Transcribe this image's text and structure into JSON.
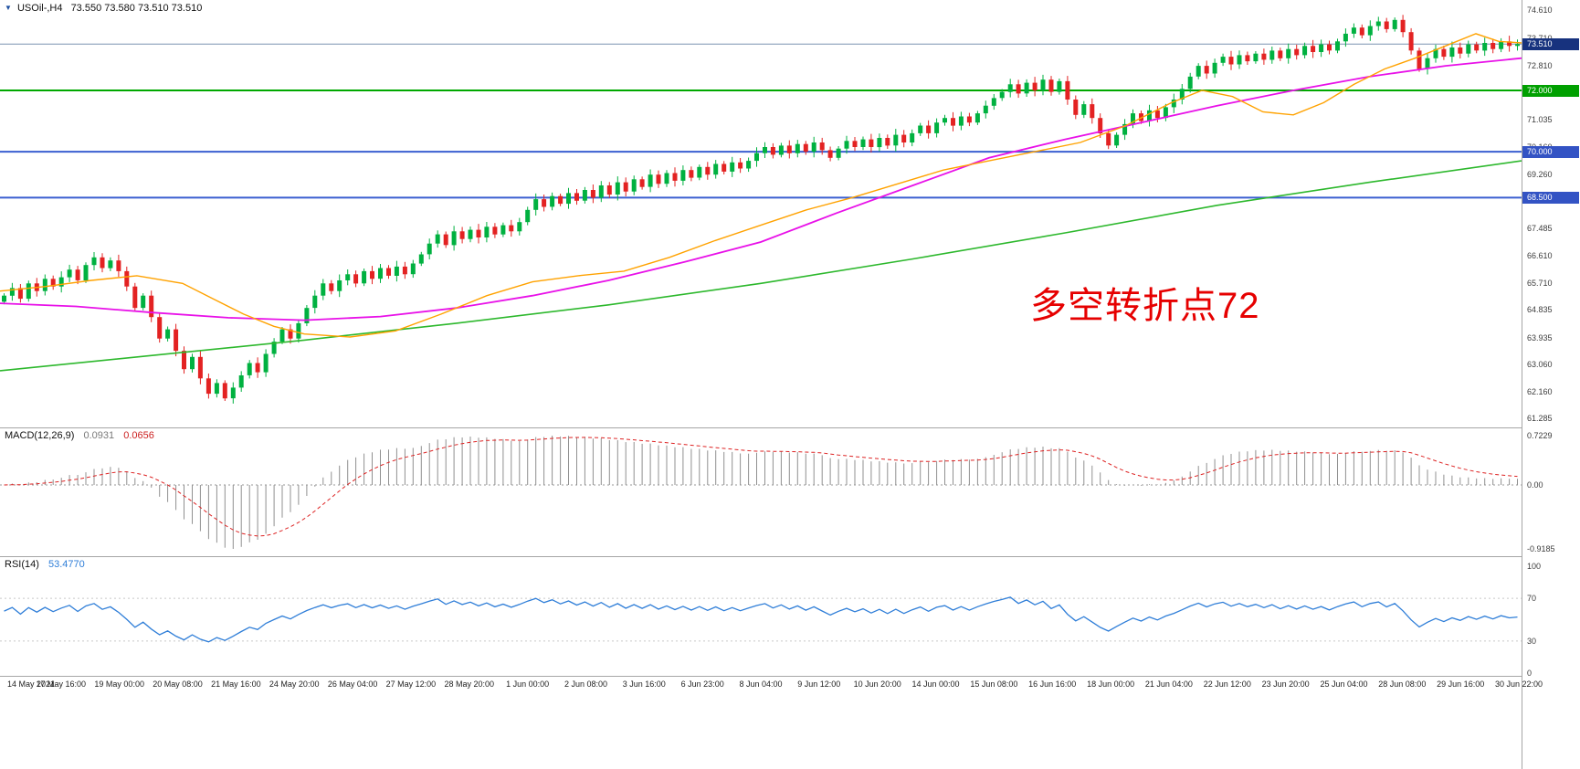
{
  "window": {
    "marker_glyph": "▼",
    "title_symbol": "USOil-,H4",
    "title_quotes": "73.550 73.580 73.510 73.510"
  },
  "annotation": {
    "text": "多空转折点72",
    "color": "#e60000"
  },
  "chart_data": {
    "type": "candlestick",
    "symbol": "USOil",
    "timeframe": "H4",
    "grid": false,
    "y_range": [
      61.0,
      74.95
    ],
    "price_axis_labels": [
      "74.610",
      "73.710",
      "72.810",
      "71.035",
      "70.160",
      "69.260",
      "67.485",
      "66.610",
      "65.710",
      "64.835",
      "63.935",
      "63.060",
      "62.160",
      "61.285"
    ],
    "time_labels": [
      "14 May 2021",
      "17 May 16:00",
      "19 May 00:00",
      "20 May 08:00",
      "21 May 16:00",
      "24 May 20:00",
      "26 May 04:00",
      "27 May 12:00",
      "28 May 20:00",
      "1 Jun 00:00",
      "2 Jun 08:00",
      "3 Jun 16:00",
      "6 Jun 23:00",
      "8 Jun 04:00",
      "9 Jun 12:00",
      "10 Jun 20:00",
      "14 Jun 00:00",
      "15 Jun 08:00",
      "16 Jun 16:00",
      "18 Jun 00:00",
      "21 Jun 04:00",
      "22 Jun 12:00",
      "23 Jun 20:00",
      "25 Jun 04:00",
      "28 Jun 08:00",
      "29 Jun 16:00",
      "30 Jun 22:00"
    ],
    "open_seed": 65.1,
    "closes": [
      65.3,
      65.55,
      65.2,
      65.7,
      65.45,
      65.85,
      65.6,
      65.9,
      66.15,
      65.8,
      66.3,
      66.55,
      66.2,
      66.45,
      66.1,
      65.6,
      64.9,
      65.3,
      64.6,
      63.9,
      64.2,
      63.5,
      62.9,
      63.3,
      62.6,
      62.1,
      62.45,
      61.95,
      62.3,
      62.7,
      63.1,
      62.8,
      63.4,
      63.8,
      64.2,
      63.9,
      64.4,
      64.9,
      65.3,
      65.7,
      65.45,
      65.8,
      66.0,
      65.7,
      66.1,
      65.85,
      66.2,
      65.95,
      66.25,
      66.0,
      66.35,
      66.65,
      67.0,
      67.3,
      66.95,
      67.4,
      67.15,
      67.45,
      67.2,
      67.55,
      67.3,
      67.6,
      67.4,
      67.7,
      68.1,
      68.45,
      68.2,
      68.55,
      68.3,
      68.65,
      68.4,
      68.75,
      68.5,
      68.9,
      68.6,
      69.0,
      68.7,
      69.1,
      68.85,
      69.25,
      68.95,
      69.3,
      69.05,
      69.4,
      69.15,
      69.5,
      69.25,
      69.6,
      69.35,
      69.65,
      69.45,
      69.7,
      69.95,
      70.15,
      69.9,
      70.2,
      69.95,
      70.25,
      70.0,
      70.3,
      70.05,
      69.8,
      70.1,
      70.35,
      70.15,
      70.4,
      70.15,
      70.45,
      70.2,
      70.55,
      70.3,
      70.6,
      70.85,
      70.6,
      70.95,
      71.1,
      70.85,
      71.15,
      70.95,
      71.25,
      71.5,
      71.75,
      71.95,
      72.2,
      71.9,
      72.25,
      72.0,
      72.35,
      71.95,
      72.3,
      71.7,
      71.2,
      71.55,
      71.1,
      70.6,
      70.2,
      70.55,
      70.9,
      71.25,
      71.0,
      71.35,
      71.1,
      71.45,
      71.7,
      72.05,
      72.45,
      72.8,
      72.55,
      72.9,
      73.1,
      72.85,
      73.15,
      72.95,
      73.2,
      73.0,
      73.3,
      73.05,
      73.35,
      73.15,
      73.45,
      73.25,
      73.5,
      73.3,
      73.6,
      73.85,
      74.05,
      73.8,
      74.1,
      74.25,
      74.0,
      74.3,
      73.9,
      73.3,
      72.7,
      73.05,
      73.35,
      73.1,
      73.4,
      73.2,
      73.5,
      73.3,
      73.55,
      73.35,
      73.6,
      73.45,
      73.51
    ],
    "candle_colors": {
      "up": "#00b140",
      "down": "#e32222"
    },
    "hlines": [
      {
        "price": 73.51,
        "label": "73.510",
        "line": "#7b93b1",
        "box": "#17327e",
        "width": 1
      },
      {
        "price": 72.0,
        "label": "72.000",
        "line": "#00a800",
        "box": "#00a000",
        "width": 2
      },
      {
        "price": 70.0,
        "label": "70.000",
        "line": "#3a5fd0",
        "box": "#3353c4",
        "width": 2
      },
      {
        "price": 68.5,
        "label": "68.500",
        "line": "#3a5fd0",
        "box": "#3353c4",
        "width": 2
      }
    ],
    "moving_averages": {
      "fast": {
        "color": "#ffa200",
        "anchors": [
          [
            0.0,
            65.45
          ],
          [
            0.03,
            65.6
          ],
          [
            0.06,
            65.8
          ],
          [
            0.09,
            65.95
          ],
          [
            0.12,
            65.7
          ],
          [
            0.14,
            65.2
          ],
          [
            0.16,
            64.7
          ],
          [
            0.18,
            64.3
          ],
          [
            0.2,
            64.05
          ],
          [
            0.23,
            63.95
          ],
          [
            0.26,
            64.15
          ],
          [
            0.29,
            64.7
          ],
          [
            0.32,
            65.3
          ],
          [
            0.35,
            65.75
          ],
          [
            0.38,
            65.95
          ],
          [
            0.41,
            66.1
          ],
          [
            0.44,
            66.55
          ],
          [
            0.47,
            67.1
          ],
          [
            0.5,
            67.6
          ],
          [
            0.53,
            68.1
          ],
          [
            0.56,
            68.5
          ],
          [
            0.59,
            68.95
          ],
          [
            0.62,
            69.4
          ],
          [
            0.65,
            69.7
          ],
          [
            0.68,
            70.0
          ],
          [
            0.71,
            70.3
          ],
          [
            0.74,
            70.85
          ],
          [
            0.77,
            71.6
          ],
          [
            0.79,
            72.0
          ],
          [
            0.81,
            71.8
          ],
          [
            0.83,
            71.3
          ],
          [
            0.85,
            71.2
          ],
          [
            0.87,
            71.6
          ],
          [
            0.89,
            72.2
          ],
          [
            0.91,
            72.7
          ],
          [
            0.93,
            73.05
          ],
          [
            0.95,
            73.45
          ],
          [
            0.97,
            73.85
          ],
          [
            0.985,
            73.6
          ],
          [
            1.0,
            73.55
          ]
        ]
      },
      "mid": {
        "color": "#e811e8",
        "anchors": [
          [
            0.0,
            65.05
          ],
          [
            0.05,
            64.95
          ],
          [
            0.1,
            64.75
          ],
          [
            0.15,
            64.58
          ],
          [
            0.2,
            64.5
          ],
          [
            0.25,
            64.62
          ],
          [
            0.3,
            64.9
          ],
          [
            0.35,
            65.3
          ],
          [
            0.4,
            65.8
          ],
          [
            0.45,
            66.4
          ],
          [
            0.5,
            67.05
          ],
          [
            0.55,
            68.0
          ],
          [
            0.6,
            68.9
          ],
          [
            0.65,
            69.8
          ],
          [
            0.7,
            70.4
          ],
          [
            0.75,
            70.95
          ],
          [
            0.8,
            71.5
          ],
          [
            0.85,
            72.0
          ],
          [
            0.9,
            72.45
          ],
          [
            0.95,
            72.8
          ],
          [
            1.0,
            73.05
          ]
        ]
      },
      "slow": {
        "color": "#2db82d",
        "anchors": [
          [
            0.0,
            62.85
          ],
          [
            0.1,
            63.35
          ],
          [
            0.2,
            63.85
          ],
          [
            0.3,
            64.4
          ],
          [
            0.4,
            65.0
          ],
          [
            0.5,
            65.7
          ],
          [
            0.6,
            66.5
          ],
          [
            0.7,
            67.35
          ],
          [
            0.8,
            68.25
          ],
          [
            0.9,
            69.0
          ],
          [
            1.0,
            69.7
          ]
        ]
      }
    },
    "macd": {
      "label": "MACD(12,26,9)",
      "value_main": "0.0931",
      "value_signal": "0.0656",
      "axis_labels": [
        "0.7229",
        "0.00",
        "-0.9185"
      ],
      "fast": 12,
      "slow": 26,
      "signal": 9,
      "histogram_color": "#909090",
      "signal_color": "#dd2222"
    },
    "rsi": {
      "label": "RSI(14)",
      "value": "53.4770",
      "axis_labels": [
        "100",
        "70",
        "30",
        "0"
      ],
      "period": 14,
      "levels": [
        70,
        30
      ],
      "color": "#2f7ed8"
    }
  }
}
